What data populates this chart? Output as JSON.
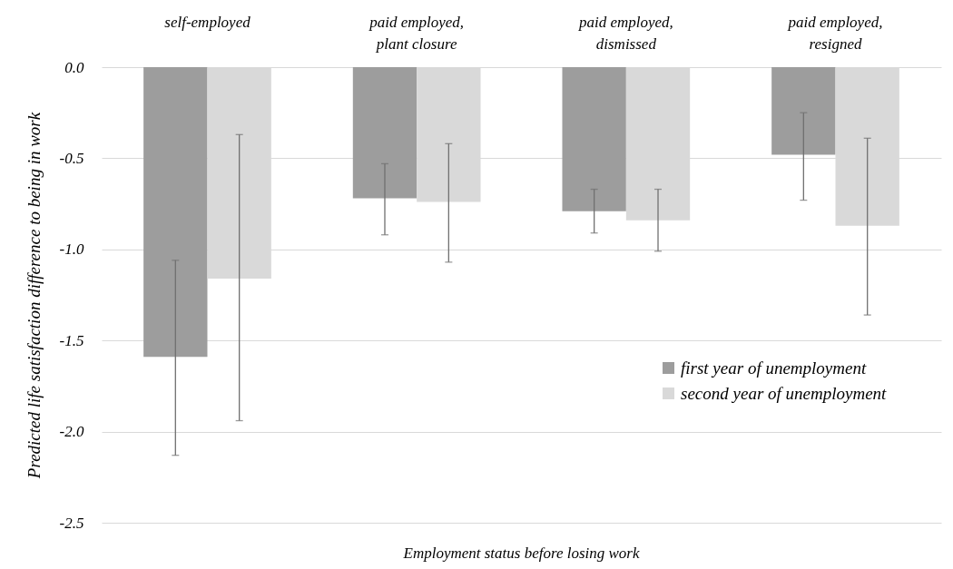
{
  "chart_data": {
    "type": "bar",
    "xlabel": "Employment status before losing work",
    "ylabel": "Predicted life satisfaction difference to being in work",
    "categories": [
      "self-employed",
      "paid employed, plant closure",
      "paid employed, dismissed",
      "paid employed, resigned"
    ],
    "series": [
      {
        "name": "first year of unemployment",
        "color": "#9d9d9d",
        "values": [
          -1.59,
          -0.72,
          -0.79,
          -0.48
        ],
        "errors": [
          [
            -2.13,
            -1.06
          ],
          [
            -0.92,
            -0.53
          ],
          [
            -0.91,
            -0.67
          ],
          [
            -0.73,
            -0.25
          ]
        ]
      },
      {
        "name": "second year of unemployment",
        "color": "#d9d9d9",
        "values": [
          -1.16,
          -0.74,
          -0.84,
          -0.87
        ],
        "errors": [
          [
            -1.94,
            -0.37
          ],
          [
            -1.07,
            -0.42
          ],
          [
            -1.01,
            -0.67
          ],
          [
            -1.36,
            -0.39
          ]
        ]
      }
    ],
    "ylim": [
      -2.5,
      0
    ],
    "yticks": [
      {
        "value": -2.5,
        "label": "-2.5"
      },
      {
        "value": -2,
        "label": "-2.0"
      },
      {
        "value": -1.5,
        "label": "-1.5"
      },
      {
        "value": -1,
        "label": "-1.0"
      },
      {
        "value": -0.5,
        "label": "-0.5"
      },
      {
        "value": 0,
        "label": "0.0"
      }
    ],
    "grid": "y",
    "legend": "bottom right"
  }
}
